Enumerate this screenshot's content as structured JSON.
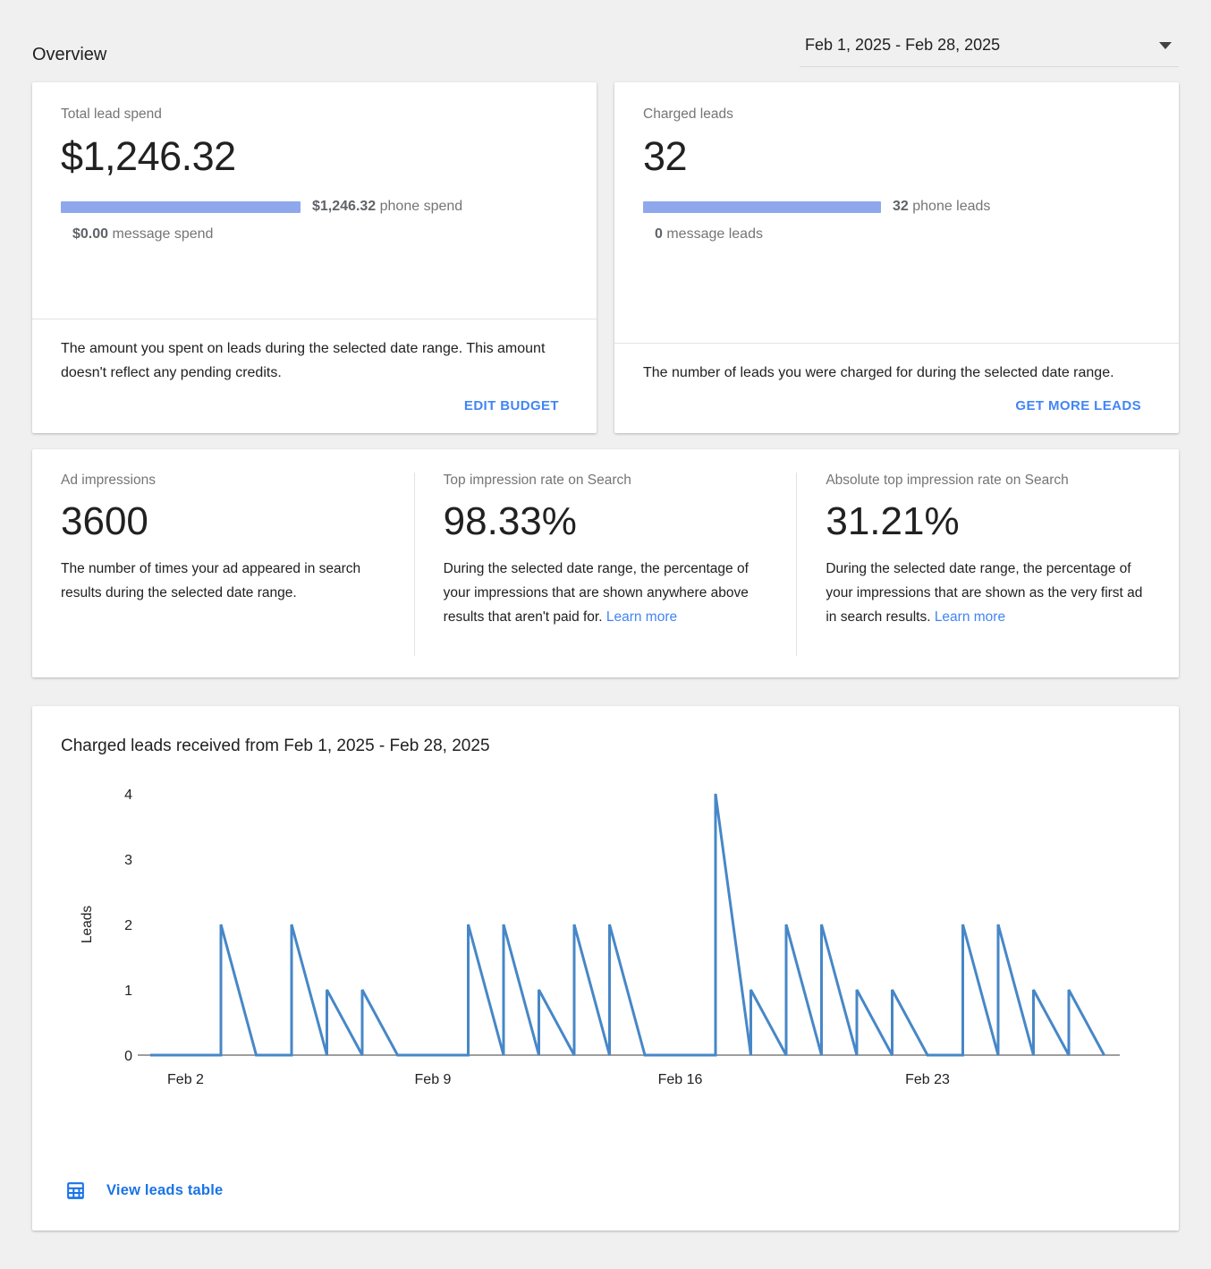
{
  "header": {
    "title": "Overview",
    "date_range": "Feb 1, 2025 - Feb 28, 2025"
  },
  "cards": {
    "lead_spend": {
      "label": "Total lead spend",
      "value": "$1,246.32",
      "bar_value": "$1,246.32",
      "bar_text": " phone spend",
      "secondary_value": "$0.00",
      "secondary_text": " message spend",
      "description": "The amount you spent on leads during the selected date range. This amount doesn't reflect any pending credits.",
      "action": "EDIT BUDGET"
    },
    "charged_leads": {
      "label": "Charged leads",
      "value": "32",
      "bar_value": "32",
      "bar_text": " phone leads",
      "secondary_value": "0",
      "secondary_text": " message leads",
      "description": "The number of leads you were charged for during the selected date range.",
      "action": "GET MORE LEADS"
    },
    "stats": [
      {
        "label": "Ad impressions",
        "value": "3600",
        "description": "The number of times your ad appeared in search results during the selected date range.",
        "link": ""
      },
      {
        "label": "Top impression rate on Search",
        "value": "98.33%",
        "description": "During the selected date range, the percentage of your impressions that are shown anywhere above results that aren't paid for. ",
        "link": "Learn more"
      },
      {
        "label": "Absolute top impression rate on Search",
        "value": "31.21%",
        "description": "During the selected date range, the percentage of your impressions that are shown as the very first ad in search results. ",
        "link": "Learn more"
      }
    ]
  },
  "chart_card": {
    "title": "Charged leads received from Feb 1, 2025 - Feb 28, 2025",
    "footer_link": "View leads table"
  },
  "chart_data": {
    "type": "line",
    "title": "Charged leads received from Feb 1, 2025 - Feb 28, 2025",
    "xlabel": "",
    "ylabel": "Leads",
    "x": [
      "Feb 1",
      "Feb 2",
      "Feb 3",
      "Feb 4",
      "Feb 5",
      "Feb 6",
      "Feb 7",
      "Feb 8",
      "Feb 9",
      "Feb 10",
      "Feb 11",
      "Feb 12",
      "Feb 13",
      "Feb 14",
      "Feb 15",
      "Feb 16",
      "Feb 17",
      "Feb 18",
      "Feb 19",
      "Feb 20",
      "Feb 21",
      "Feb 22",
      "Feb 23",
      "Feb 24",
      "Feb 25",
      "Feb 26",
      "Feb 27",
      "Feb 28"
    ],
    "values": [
      0,
      0,
      2,
      0,
      2,
      1,
      1,
      0,
      0,
      2,
      2,
      1,
      2,
      2,
      0,
      0,
      4,
      1,
      2,
      2,
      1,
      1,
      0,
      2,
      2,
      1,
      1,
      0
    ],
    "x_ticks_shown": [
      "Feb 2",
      "Feb 9",
      "Feb 16",
      "Feb 23"
    ],
    "y_ticks": [
      0,
      1,
      2,
      3,
      4
    ],
    "ylim": [
      0,
      4
    ],
    "grid": false,
    "legend": "none",
    "line_color": "#4787c7",
    "axis_color": "#9e9e9e",
    "style": "daily sawtooth: vertical rise to day's value, linear decline to zero by next day"
  },
  "colors": {
    "page_bg": "#f0f0f0",
    "card_bg": "#ffffff",
    "accent_link": "#4285f4",
    "footer_link": "#1a73e8",
    "bar_fill": "#8fa8ec",
    "chart_line": "#4787c7",
    "axis_gray": "#9e9e9e",
    "label_gray": "#757575",
    "text_dark": "#212121",
    "divider": "#e3e3e3"
  }
}
